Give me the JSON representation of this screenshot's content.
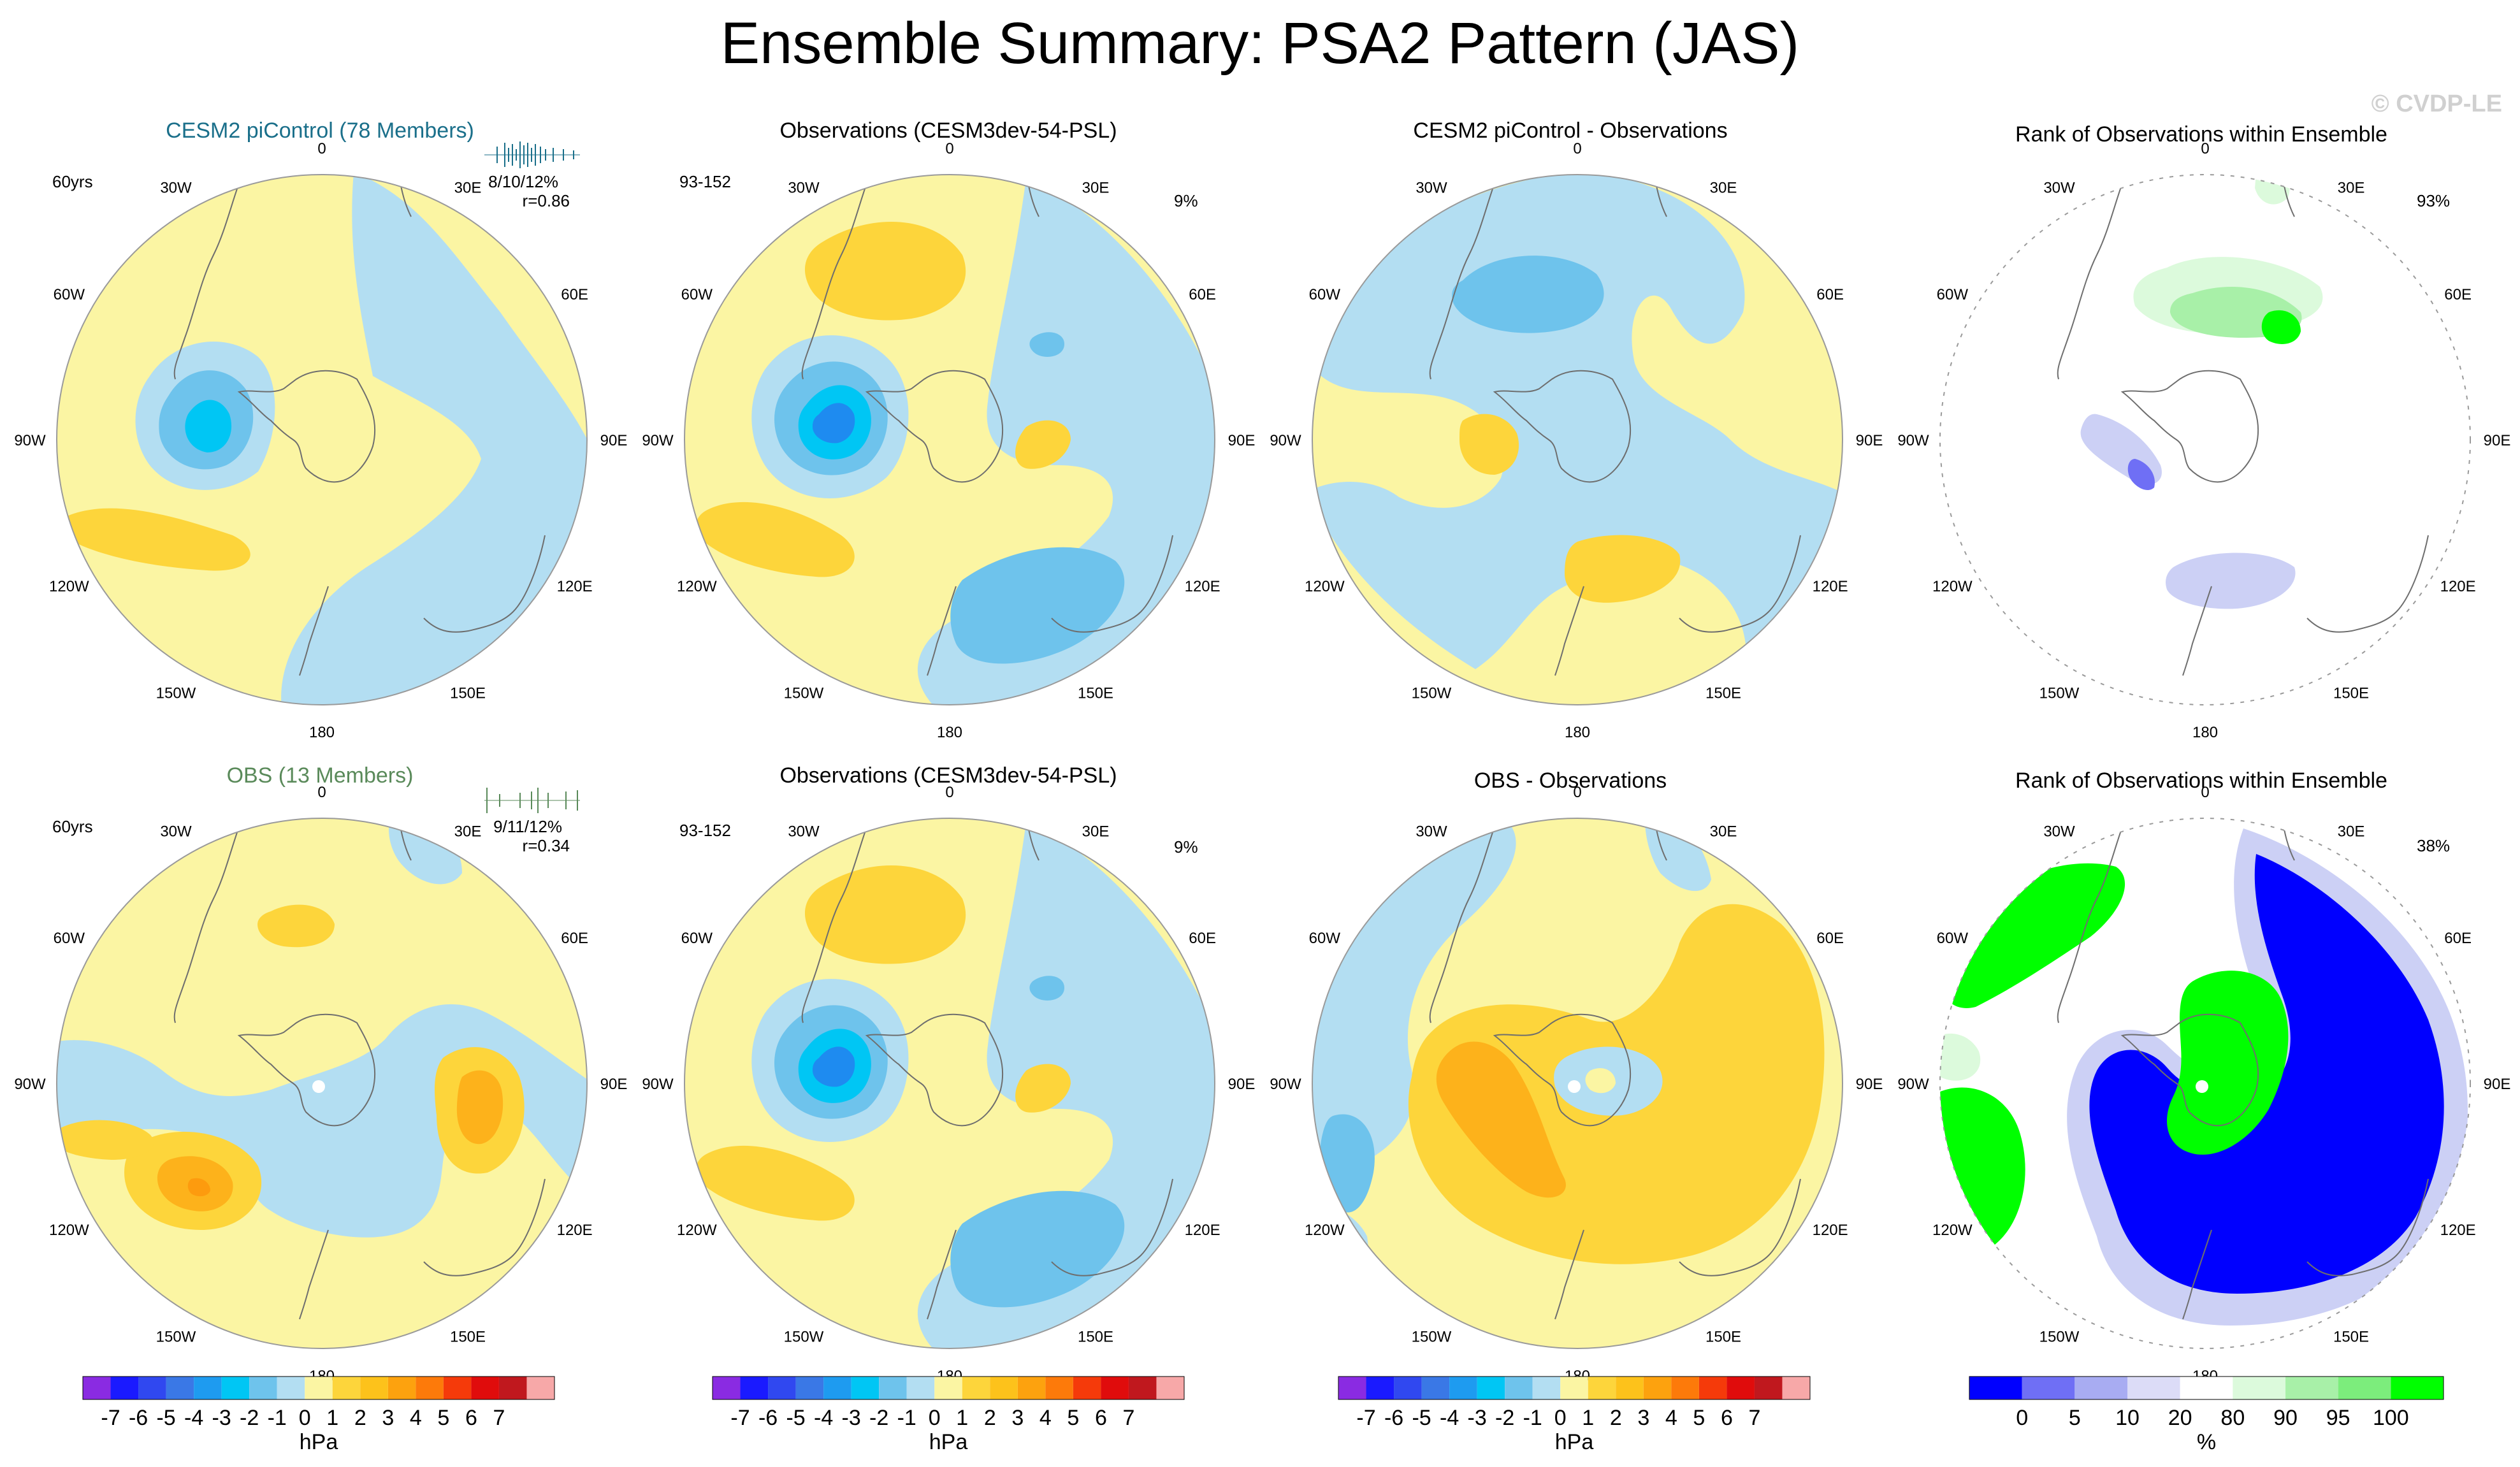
{
  "title": "Ensemble Summary: PSA2 Pattern (JAS)",
  "watermark": "© CVDP-LE",
  "colors": {
    "ens_title": "#1a6f8a",
    "obs_title": "#5a8a5a",
    "land_outline": "#6e6e6e",
    "circle_outline": "#9a9a9a",
    "neg1": "#b3def2",
    "neg2": "#6ec3ec",
    "neg3": "#47a6e6",
    "neg4": "#00c6f4",
    "neg5": "#1e8bf0",
    "pos1": "#fbf5a3",
    "pos2": "#fdd53b",
    "pos3": "#fdb21b",
    "pos4": "#fd9b0e",
    "rank_green_light": "#a8f0a8",
    "rank_green": "#00ff00",
    "rank_blue": "#0000ff",
    "rank_lav": "#ccd0f5",
    "rank_mid_blue": "#6f6ff5",
    "rank_lightgreen": "#dcfadc"
  },
  "panels": {
    "p1": {
      "title": "CESM2 piControl (78 Members)",
      "years": "60yrs",
      "stats": "8/10/12%",
      "corr": "r=0.86"
    },
    "p2": {
      "title": "Observations (CESM3dev-54-PSL)",
      "years": "93-152",
      "pct": "9%"
    },
    "p3": {
      "title": "CESM2 piControl - Observations"
    },
    "p4": {
      "title": "Rank of Observations within Ensemble",
      "pct": "93%"
    },
    "p5": {
      "title": "OBS (13 Members)",
      "years": "60yrs",
      "stats": "9/11/12%",
      "corr": "r=0.34"
    },
    "p6": {
      "title": "Observations (CESM3dev-54-PSL)",
      "years": "93-152",
      "pct": "9%"
    },
    "p7": {
      "title": "OBS - Observations"
    },
    "p8": {
      "title": "Rank of Observations within Ensemble",
      "pct": "38%"
    }
  },
  "lon_labels": [
    "0",
    "30E",
    "60E",
    "90E",
    "120E",
    "150E",
    "180",
    "150W",
    "120W",
    "90W",
    "60W",
    "30W"
  ],
  "colorbar_hpa": {
    "colors": [
      "#8a2be2",
      "#1a1aff",
      "#3048f0",
      "#3a78e6",
      "#1e9bf0",
      "#00c6f4",
      "#6ec3ec",
      "#b3def2",
      "#fbf5a3",
      "#fdd53b",
      "#fdc21b",
      "#fda20e",
      "#fd7a0a",
      "#f53a0a",
      "#e00c0c",
      "#c0181e",
      "#f7a8a8"
    ],
    "ticks": [
      "-7",
      "-6",
      "-5",
      "-4",
      "-3",
      "-2",
      "-1",
      "0",
      "1",
      "2",
      "3",
      "4",
      "5",
      "6",
      "7"
    ],
    "unit": "hPa"
  },
  "colorbar_pct": {
    "colors": [
      "#0000ff",
      "#6f6ff5",
      "#a8acf2",
      "#dcdcf7",
      "#ffffff",
      "#dcfadc",
      "#a8f0a8",
      "#7ced7c",
      "#00ff00"
    ],
    "ticks": [
      "0",
      "5",
      "10",
      "20",
      "80",
      "90",
      "95",
      "100"
    ],
    "unit": "%"
  },
  "chart_data": [
    {
      "type": "heatmap",
      "title": "CESM2 piControl (78 Members)",
      "projection": "south polar stereographic",
      "unit": "hPa",
      "years": "60yrs",
      "stats": "8/10/12%",
      "r": 0.86,
      "features": [
        {
          "name": "low SW of Antarctic Peninsula",
          "value": -3
        },
        {
          "name": "high south Pacific",
          "value": 2
        },
        {
          "name": "weak ridge Indian Ocean",
          "value": -1
        }
      ]
    },
    {
      "type": "heatmap",
      "title": "Observations (CESM3dev-54-PSL)",
      "unit": "hPa",
      "years": "93-152",
      "pct_variance": "9%",
      "features": [
        {
          "name": "low west of peninsula",
          "value": -4
        },
        {
          "name": "high south Atlantic",
          "value": 2
        },
        {
          "name": "low SE Indian Ocean",
          "value": -2
        }
      ]
    },
    {
      "type": "heatmap",
      "title": "CESM2 piControl - Observations",
      "unit": "hPa",
      "features": [
        {
          "name": "low south Atlantic",
          "value": -2
        },
        {
          "name": "high Australian sector",
          "value": 2
        }
      ]
    },
    {
      "type": "heatmap",
      "title": "Rank of Observations within Ensemble",
      "unit": "%",
      "pct": "93%",
      "features": [
        {
          "name": "high rank south Atlantic",
          "value": 95
        },
        {
          "name": "low rank Pacific",
          "value": 10
        }
      ]
    },
    {
      "type": "heatmap",
      "title": "OBS (13 Members)",
      "unit": "hPa",
      "years": "60yrs",
      "stats": "9/11/12%",
      "r": 0.34,
      "features": [
        {
          "name": "high Ross/Amundsen",
          "value": 4
        },
        {
          "name": "high Indian Ocean",
          "value": 3
        }
      ]
    },
    {
      "type": "heatmap",
      "title": "Observations (CESM3dev-54-PSL)",
      "unit": "hPa",
      "years": "93-152",
      "pct_variance": "9%",
      "features": [
        {
          "name": "low west of peninsula",
          "value": -4
        },
        {
          "name": "low SE Indian Ocean",
          "value": -2
        }
      ]
    },
    {
      "type": "heatmap",
      "title": "OBS - Observations",
      "unit": "hPa",
      "features": [
        {
          "name": "horseshoe high",
          "value": 3
        },
        {
          "name": "low Pacific",
          "value": -2
        }
      ]
    },
    {
      "type": "heatmap",
      "title": "Rank of Observations within Ensemble",
      "unit": "%",
      "pct": "38%",
      "features": [
        {
          "name": "low rank band",
          "value": 0
        },
        {
          "name": "high rank regions",
          "value": 100
        }
      ]
    }
  ]
}
